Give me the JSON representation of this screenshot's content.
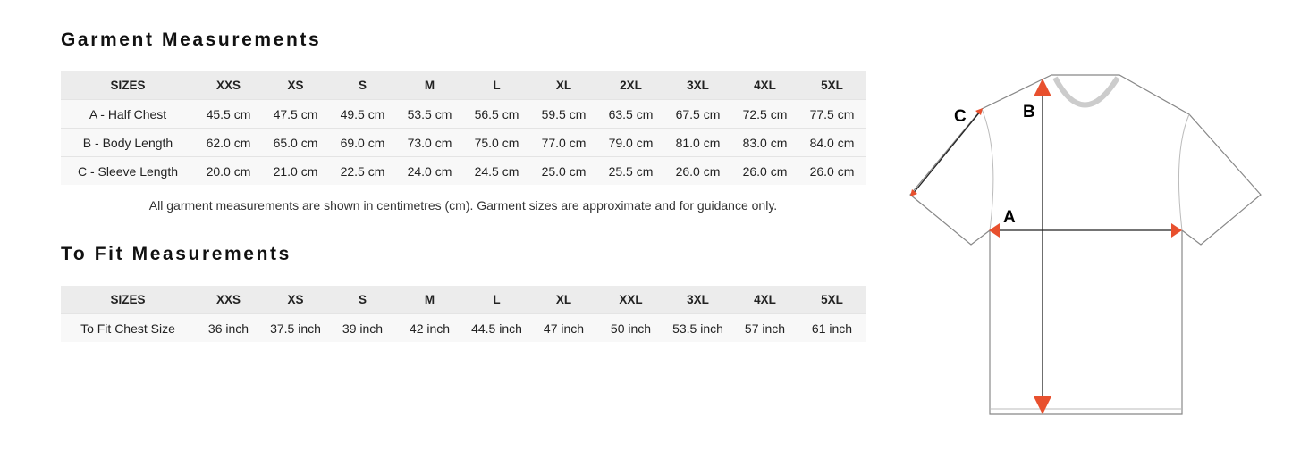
{
  "garment": {
    "title": "Garment Measurements",
    "headers": [
      "SIZES",
      "XXS",
      "XS",
      "S",
      "M",
      "L",
      "XL",
      "2XL",
      "3XL",
      "4XL",
      "5XL"
    ],
    "rows": [
      [
        "A - Half Chest",
        "45.5 cm",
        "47.5 cm",
        "49.5 cm",
        "53.5 cm",
        "56.5 cm",
        "59.5 cm",
        "63.5 cm",
        "67.5 cm",
        "72.5 cm",
        "77.5 cm"
      ],
      [
        "B - Body Length",
        "62.0 cm",
        "65.0 cm",
        "69.0 cm",
        "73.0 cm",
        "75.0 cm",
        "77.0 cm",
        "79.0 cm",
        "81.0 cm",
        "83.0 cm",
        "84.0 cm"
      ],
      [
        "C - Sleeve Length",
        "20.0 cm",
        "21.0 cm",
        "22.5 cm",
        "24.0 cm",
        "24.5 cm",
        "25.0 cm",
        "25.5 cm",
        "26.0 cm",
        "26.0 cm",
        "26.0 cm"
      ]
    ],
    "note": "All garment measurements are shown in centimetres (cm). Garment sizes are approximate and for guidance only."
  },
  "fit": {
    "title": "To Fit Measurements",
    "headers": [
      "SIZES",
      "XXS",
      "XS",
      "S",
      "M",
      "L",
      "XL",
      "XXL",
      "3XL",
      "4XL",
      "5XL"
    ],
    "rows": [
      [
        "To Fit Chest Size",
        "36 inch",
        "37.5 inch",
        "39 inch",
        "42 inch",
        "44.5 inch",
        "47 inch",
        "50 inch",
        "53.5 inch",
        "57 inch",
        "61 inch"
      ]
    ]
  },
  "diagram": {
    "labels": {
      "a": "A",
      "b": "B",
      "c": "C"
    },
    "arrow_color": "#e8502e"
  }
}
